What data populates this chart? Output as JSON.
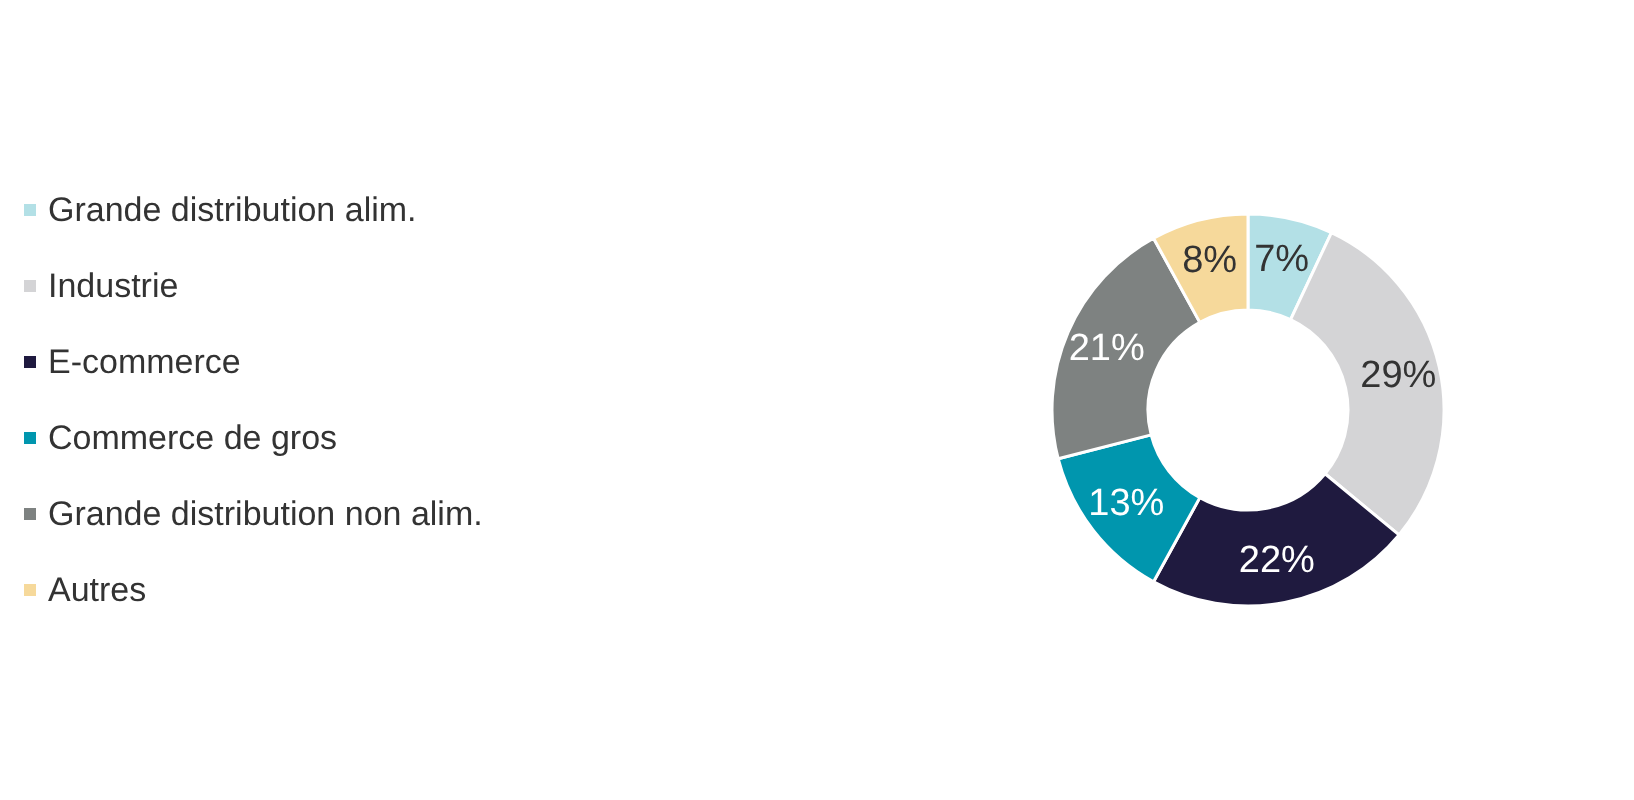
{
  "chart_data": {
    "type": "donut",
    "categories": [
      "Grande distribution alim.",
      "Industrie",
      "E-commerce",
      "Commerce de gros",
      "Grande distribution non alim.",
      "Autres"
    ],
    "values": [
      7,
      29,
      22,
      13,
      21,
      8
    ],
    "colors": [
      "#b3e0e6",
      "#d4d4d6",
      "#1f1a3f",
      "#0096ae",
      "#7e8281",
      "#f6d99b"
    ],
    "value_labels": [
      "7%",
      "29%",
      "22%",
      "13%",
      "21%",
      "8%"
    ],
    "legend": "left"
  }
}
